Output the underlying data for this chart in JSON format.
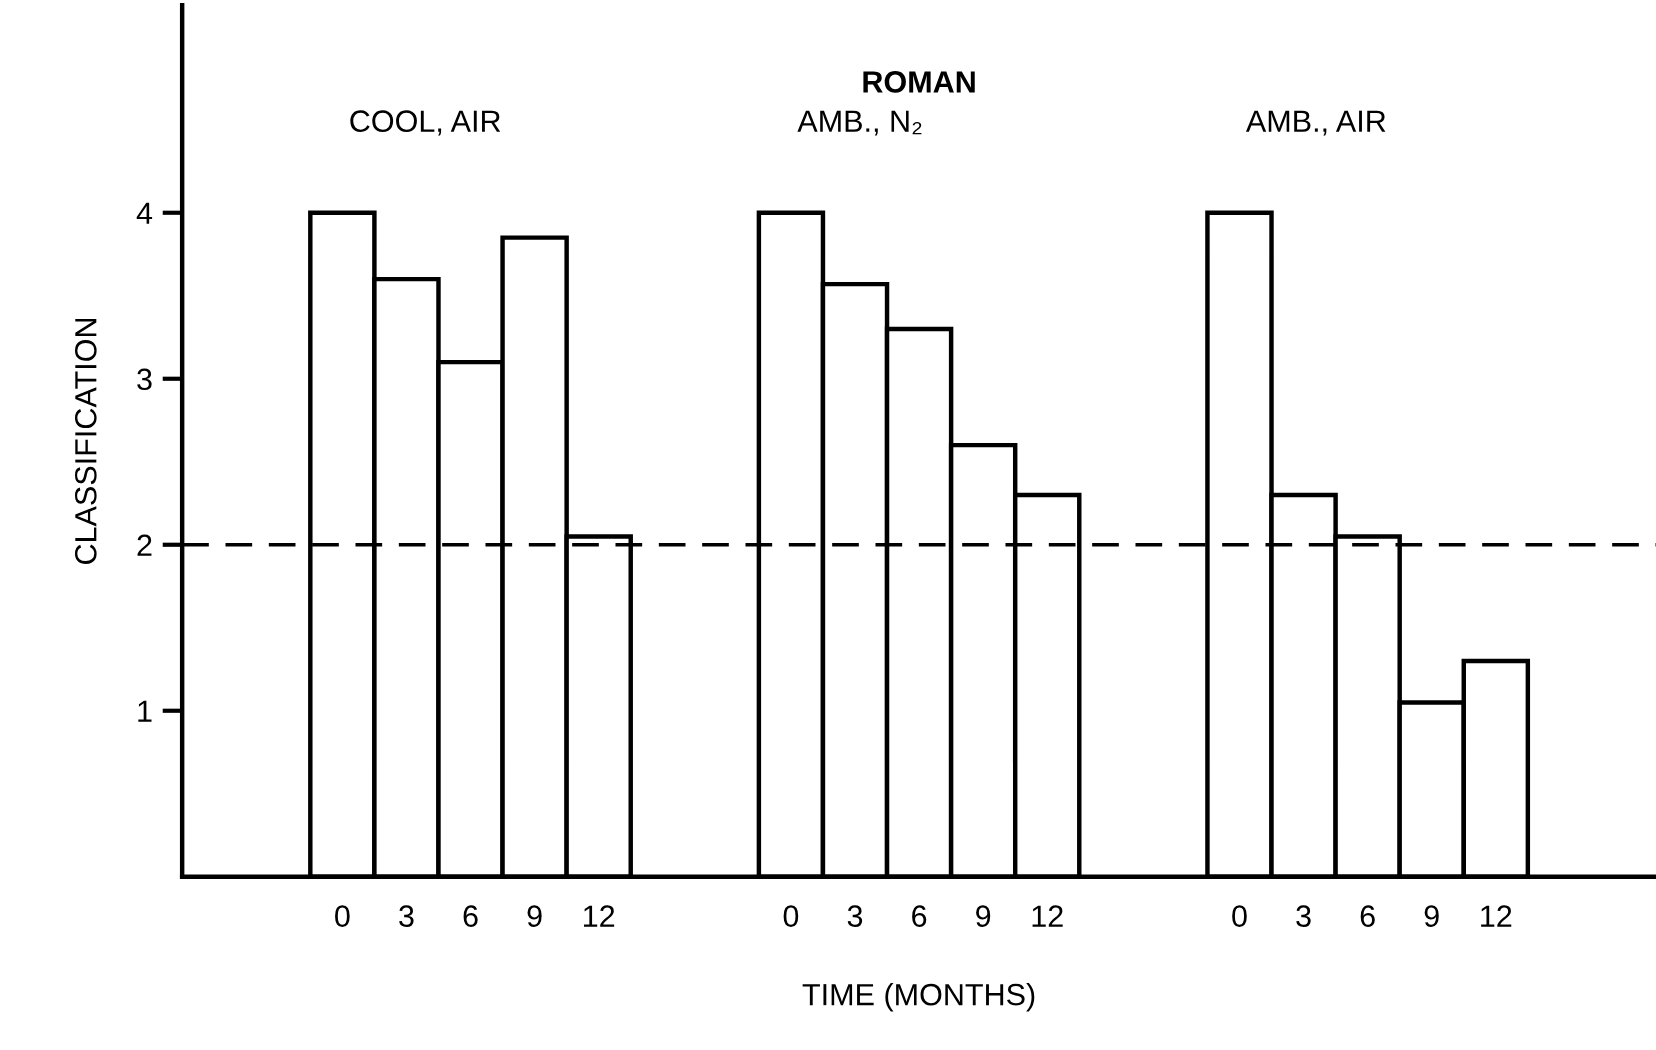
{
  "chart_data": {
    "type": "bar",
    "title": "ROMAN",
    "xlabel": "TIME (MONTHS)",
    "ylabel": "CLASSIFICATION",
    "categories": [
      null,
      null,
      "0",
      "3",
      "6",
      "9",
      "12",
      null,
      null,
      "0",
      "3",
      "6",
      "9",
      "12",
      null,
      null,
      "0",
      "3",
      "6",
      "9",
      "12",
      null,
      null
    ],
    "values": [
      null,
      null,
      4.0,
      3.6,
      3.1,
      3.85,
      2.05,
      null,
      null,
      4.0,
      3.57,
      3.3,
      2.6,
      2.3,
      null,
      null,
      4.0,
      2.3,
      2.05,
      1.05,
      1.3,
      null,
      null
    ],
    "color": "#ffffff",
    "ylim": [
      0,
      5.25
    ],
    "yticks": [
      1,
      2,
      3,
      4
    ],
    "ref_lines": [
      {
        "axis": "y",
        "value": 2,
        "color": "#000000",
        "line_style": "dashed"
      }
    ],
    "annotations": [
      "COOL, AIR",
      "AMB., N₂",
      "AMB., AIR"
    ],
    "grid": false,
    "legend": false
  }
}
